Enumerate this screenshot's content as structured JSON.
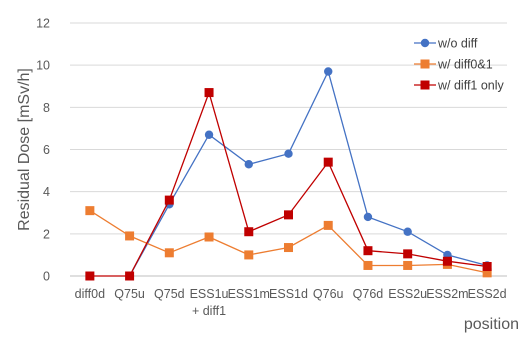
{
  "chart_data": {
    "type": "line",
    "title": "",
    "xlabel": "position",
    "ylabel": "Residual Dose [mSv/h]",
    "ylim": [
      0,
      12
    ],
    "yticks": [
      0,
      2,
      4,
      6,
      8,
      10,
      12
    ],
    "grid": true,
    "legend_position": "top-right",
    "categories": [
      [
        "diff0d"
      ],
      [
        "Q75u"
      ],
      [
        "Q75d"
      ],
      [
        "ESS1u",
        "+ diff1"
      ],
      [
        "ESS1m"
      ],
      [
        "ESS1d"
      ],
      [
        "Q76u"
      ],
      [
        "Q76d"
      ],
      [
        "ESS2u"
      ],
      [
        "ESS2m"
      ],
      [
        "ESS2d"
      ]
    ],
    "series": [
      {
        "name": "w/o diff",
        "color": "#4472C4",
        "marker": "circle",
        "values": [
          null,
          0.0,
          3.4,
          6.7,
          5.3,
          5.8,
          9.7,
          2.8,
          2.1,
          1.0,
          0.5
        ]
      },
      {
        "name": "w/ diff0&1",
        "color": "#ED7D31",
        "marker": "square",
        "values": [
          3.1,
          1.9,
          1.1,
          1.85,
          1.0,
          1.35,
          2.4,
          0.5,
          0.5,
          0.55,
          0.15
        ]
      },
      {
        "name": "w/ diff1 only",
        "color": "#C00000",
        "marker": "square",
        "values": [
          0.0,
          0.0,
          3.6,
          8.7,
          2.1,
          2.9,
          5.4,
          1.2,
          1.05,
          0.7,
          0.45
        ]
      }
    ]
  }
}
